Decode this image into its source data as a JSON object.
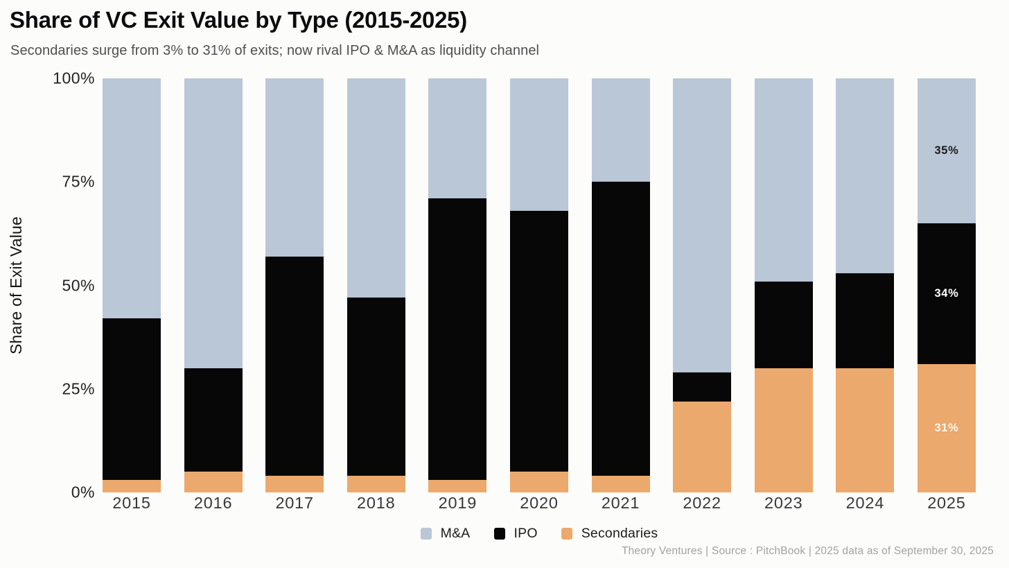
{
  "header": {
    "title": "Share of VC Exit Value by Type (2015-2025)",
    "subtitle": "Secondaries surge from 3% to 31% of exits; now rival IPO & M&A as liquidity channel"
  },
  "footer": {
    "attribution": "Theory Ventures | Source : PitchBook | 2025 data as of September 30, 2025"
  },
  "chart_data": {
    "type": "bar",
    "stacked": true,
    "unit": "percent",
    "title": "Share of VC Exit Value by Type (2015-2025)",
    "subtitle": "Secondaries surge from 3% to 31% of exits; now rival IPO & M&A as liquidity channel",
    "ylabel": "Share of Exit Value",
    "xlabel": "",
    "ylim": [
      0,
      100
    ],
    "yticks": [
      "100%",
      "75%",
      "50%",
      "25%",
      "0%"
    ],
    "grid": false,
    "legend_position": "bottom",
    "categories": [
      "2015",
      "2016",
      "2017",
      "2018",
      "2019",
      "2020",
      "2021",
      "2022",
      "2023",
      "2024",
      "2025"
    ],
    "stack_order_bottom_to_top": [
      "Secondaries",
      "IPO",
      "M&A"
    ],
    "series": [
      {
        "name": "M&A",
        "key": "ma",
        "color": "#b9c7d7",
        "label_text_color": "#1c1c1c",
        "values": [
          58,
          70,
          43,
          53,
          29,
          32,
          25,
          71,
          49,
          47,
          35
        ]
      },
      {
        "name": "IPO",
        "key": "ipo",
        "color": "#070707",
        "label_text_color": "#ffffff",
        "values": [
          39,
          25,
          53,
          43,
          68,
          63,
          71,
          7,
          21,
          23,
          34
        ]
      },
      {
        "name": "Secondaries",
        "key": "secondaries",
        "color": "#eca96d",
        "label_text_color": "#fdf7ee",
        "values": [
          3,
          5,
          4,
          4,
          3,
          5,
          4,
          22,
          30,
          30,
          31
        ]
      }
    ],
    "bar_labels": {
      "2025": {
        "ma": "35%",
        "ipo": "34%",
        "secondaries": "31%"
      }
    }
  }
}
